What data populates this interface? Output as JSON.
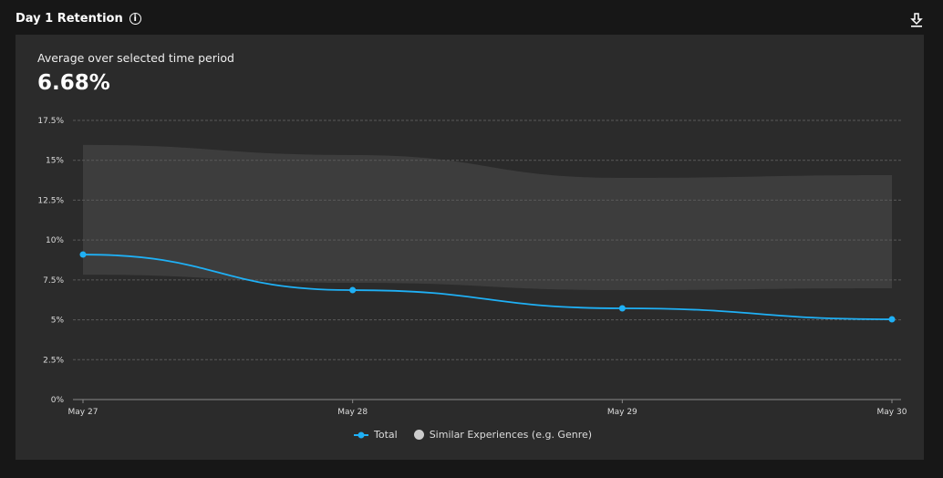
{
  "header": {
    "title": "Day 1 Retention",
    "info_icon": "info-icon",
    "download_icon": "download-icon"
  },
  "summary": {
    "label": "Average over selected time period",
    "value": "6.68%"
  },
  "chart_data": {
    "type": "line",
    "title": "",
    "xlabel": "",
    "ylabel": "",
    "categories": [
      "May 27",
      "May 28",
      "May 29",
      "May 30"
    ],
    "ylim": [
      0,
      17.5
    ],
    "yticks": [
      "0%",
      "2.5%",
      "5%",
      "7.5%",
      "10%",
      "12.5%",
      "15%",
      "17.5%"
    ],
    "ytick_values": [
      0,
      2.5,
      5,
      7.5,
      10,
      12.5,
      15,
      17.5
    ],
    "grid": true,
    "legend_position": "bottom",
    "series": [
      {
        "name": "Total",
        "type": "line",
        "color": "#1fb0f5",
        "values": [
          9.09,
          6.86,
          5.72,
          5.03
        ]
      },
      {
        "name": "Similar Experiences (e.g. Genre)",
        "type": "band",
        "color": "#3d3d3d",
        "upper": [
          15.96,
          15.33,
          13.9,
          14.07
        ],
        "lower": [
          7.83,
          7.32,
          6.86,
          6.98
        ]
      }
    ]
  }
}
